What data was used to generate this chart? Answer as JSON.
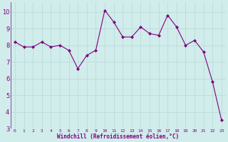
{
  "x": [
    0,
    1,
    2,
    3,
    4,
    5,
    6,
    7,
    8,
    9,
    10,
    11,
    12,
    13,
    14,
    15,
    16,
    17,
    18,
    19,
    20,
    21,
    22,
    23
  ],
  "y": [
    8.2,
    7.9,
    7.9,
    8.2,
    7.9,
    8.0,
    7.7,
    6.6,
    7.4,
    7.7,
    10.1,
    9.4,
    8.5,
    8.5,
    9.1,
    8.7,
    8.6,
    9.8,
    9.1,
    8.0,
    8.3,
    7.6,
    5.8,
    3.5
  ],
  "line_color": "#800080",
  "marker": "D",
  "marker_size": 2.0,
  "bg_color": "#d0eceb",
  "grid_color": "#b8d8d8",
  "xlabel": "Windchill (Refroidissement éolien,°C)",
  "xlabel_color": "#800080",
  "tick_color": "#800080",
  "ylim": [
    3,
    10.6
  ],
  "xlim": [
    -0.5,
    23.5
  ],
  "yticks": [
    3,
    4,
    5,
    6,
    7,
    8,
    9,
    10
  ],
  "xticks": [
    0,
    1,
    2,
    3,
    4,
    5,
    6,
    7,
    8,
    9,
    10,
    11,
    12,
    13,
    14,
    15,
    16,
    17,
    18,
    19,
    20,
    21,
    22,
    23
  ],
  "xlabel_fontsize": 5.5,
  "xtick_fontsize": 4.5,
  "ytick_fontsize": 6.0,
  "linewidth": 0.8
}
